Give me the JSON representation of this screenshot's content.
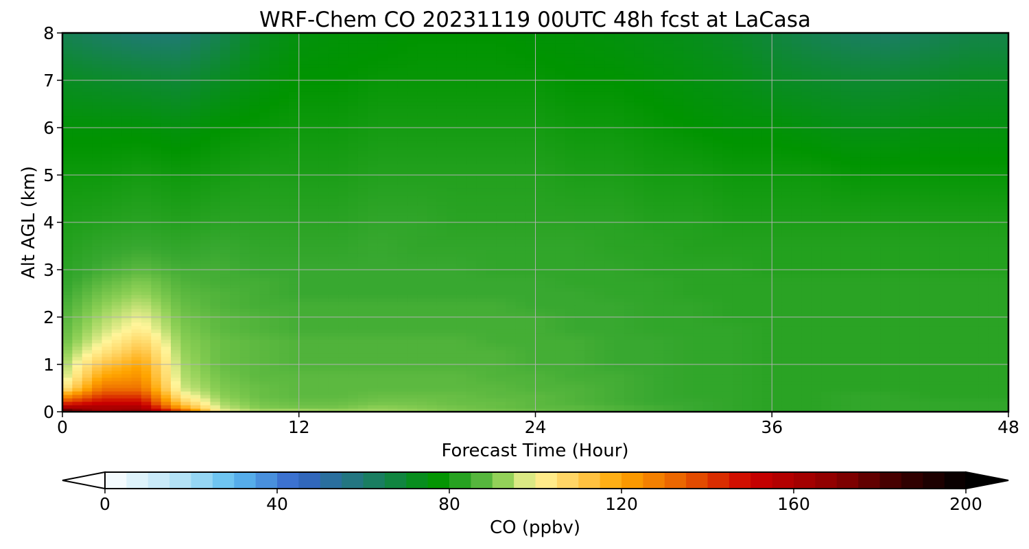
{
  "chart_data": {
    "type": "heatmap",
    "title": "WRF-Chem CO  20231119 00UTC 48h fcst at LaCasa",
    "xlabel": "Forecast Time (Hour)",
    "ylabel": "Alt AGL (km)",
    "x_ticks": [
      "0",
      "12",
      "24",
      "36",
      "48"
    ],
    "y_ticks": [
      "0",
      "1",
      "2",
      "3",
      "4",
      "5",
      "6",
      "7",
      "8"
    ],
    "xlim": [
      0,
      48
    ],
    "ylim": [
      0,
      8
    ],
    "grid": true,
    "colorbar": {
      "label": "CO  (ppbv)",
      "ticks": [
        "0",
        "40",
        "80",
        "120",
        "160",
        "200"
      ],
      "range": [
        0,
        200
      ],
      "extend": "both",
      "stops": [
        {
          "value": 0,
          "color": "#ffffff"
        },
        {
          "value": 20,
          "color": "#a8def5"
        },
        {
          "value": 30,
          "color": "#5cbcf0"
        },
        {
          "value": 45,
          "color": "#3563c9"
        },
        {
          "value": 60,
          "color": "#1f7a72"
        },
        {
          "value": 77,
          "color": "#009400"
        },
        {
          "value": 85,
          "color": "#38a830"
        },
        {
          "value": 92,
          "color": "#8ccf55"
        },
        {
          "value": 100,
          "color": "#fff59a"
        },
        {
          "value": 110,
          "color": "#ffcc55"
        },
        {
          "value": 120,
          "color": "#ffa500"
        },
        {
          "value": 135,
          "color": "#e85a00"
        },
        {
          "value": 150,
          "color": "#cc0000"
        },
        {
          "value": 170,
          "color": "#8a0000"
        },
        {
          "value": 185,
          "color": "#3a0000"
        },
        {
          "value": 200,
          "color": "#000000"
        }
      ]
    },
    "grid_hours": [
      0,
      2,
      4,
      6,
      8,
      10,
      12,
      14,
      16,
      18,
      20,
      22,
      24,
      26,
      28,
      30,
      32,
      34,
      36,
      38,
      40,
      42,
      44,
      46,
      48
    ],
    "grid_altitudes_km": [
      0,
      0.05,
      0.1,
      0.2,
      0.35,
      0.5,
      0.75,
      1,
      1.25,
      1.5,
      1.75,
      2,
      2.25,
      2.5,
      2.75,
      3,
      3.5,
      4,
      5,
      6,
      7,
      8
    ],
    "values_ppbv": [
      [
        185,
        165,
        168,
        140,
        100,
        95,
        95,
        94,
        94,
        93,
        92,
        90,
        89,
        88,
        87,
        86,
        85,
        84,
        83,
        83,
        84,
        84,
        84,
        84,
        84
      ],
      [
        175,
        160,
        165,
        130,
        98,
        93,
        93,
        92,
        93,
        92,
        90,
        90,
        89,
        88,
        87,
        86,
        85,
        84,
        83,
        83,
        84,
        84,
        84,
        84,
        84
      ],
      [
        160,
        160,
        160,
        120,
        96,
        91,
        90,
        90,
        92,
        91,
        90,
        89,
        88,
        88,
        87,
        86,
        85,
        84,
        83,
        83,
        84,
        84,
        84,
        84,
        84
      ],
      [
        140,
        150,
        150,
        110,
        94,
        90,
        89,
        89,
        90,
        90,
        89,
        89,
        88,
        87,
        86,
        85,
        85,
        84,
        83,
        83,
        84,
        84,
        84,
        84,
        84
      ],
      [
        120,
        140,
        140,
        102,
        92,
        89,
        88,
        88,
        89,
        89,
        89,
        88,
        88,
        87,
        86,
        85,
        84,
        84,
        83,
        83,
        84,
        84,
        83,
        83,
        83
      ],
      [
        102,
        130,
        130,
        97,
        91,
        89,
        88,
        88,
        88,
        88,
        88,
        88,
        87,
        87,
        86,
        85,
        84,
        84,
        83,
        83,
        83,
        83,
        83,
        83,
        83
      ],
      [
        95,
        120,
        124,
        95,
        90,
        88,
        88,
        88,
        88,
        88,
        88,
        87,
        87,
        86,
        86,
        85,
        84,
        84,
        83,
        83,
        83,
        83,
        83,
        83,
        83
      ],
      [
        93,
        112,
        120,
        94,
        89,
        88,
        87,
        87,
        87,
        87,
        87,
        87,
        86,
        86,
        85,
        85,
        84,
        84,
        83,
        83,
        83,
        83,
        83,
        83,
        83
      ],
      [
        91,
        104,
        114,
        93,
        89,
        88,
        87,
        87,
        87,
        87,
        87,
        87,
        86,
        86,
        85,
        85,
        84,
        84,
        83,
        83,
        83,
        83,
        83,
        83,
        83
      ],
      [
        89,
        99,
        108,
        92,
        89,
        88,
        87,
        87,
        87,
        87,
        87,
        86,
        86,
        86,
        85,
        85,
        84,
        84,
        83,
        83,
        83,
        83,
        83,
        83,
        83
      ],
      [
        88,
        96,
        102,
        91,
        88,
        87,
        86,
        86,
        86,
        86,
        86,
        86,
        86,
        85,
        85,
        84,
        84,
        84,
        83,
        83,
        83,
        83,
        83,
        83,
        83
      ],
      [
        87,
        94,
        99,
        90,
        88,
        87,
        86,
        86,
        86,
        86,
        86,
        86,
        86,
        85,
        85,
        84,
        84,
        83,
        83,
        83,
        83,
        83,
        83,
        83,
        83
      ],
      [
        86,
        92,
        96,
        89,
        87,
        86,
        86,
        86,
        86,
        86,
        86,
        86,
        85,
        85,
        85,
        84,
        84,
        83,
        83,
        83,
        83,
        83,
        83,
        83,
        83
      ],
      [
        85,
        90,
        93,
        88,
        87,
        86,
        85,
        85,
        85,
        85,
        85,
        85,
        85,
        85,
        84,
        84,
        83,
        83,
        83,
        83,
        83,
        83,
        83,
        83,
        83
      ],
      [
        84,
        88,
        91,
        87,
        86,
        86,
        85,
        85,
        85,
        85,
        85,
        85,
        85,
        84,
        84,
        84,
        83,
        83,
        83,
        83,
        83,
        83,
        83,
        83,
        83
      ],
      [
        83,
        86,
        88,
        86,
        86,
        85,
        85,
        85,
        85,
        85,
        85,
        84,
        84,
        84,
        84,
        83,
        83,
        83,
        82,
        82,
        82,
        82,
        82,
        82,
        82
      ],
      [
        82,
        84,
        85,
        84,
        85,
        84,
        84,
        84,
        85,
        84,
        84,
        84,
        84,
        84,
        83,
        83,
        82,
        82,
        82,
        82,
        82,
        82,
        82,
        82,
        82
      ],
      [
        81,
        82,
        83,
        82,
        83,
        83,
        83,
        83,
        84,
        84,
        83,
        83,
        83,
        83,
        83,
        82,
        82,
        81,
        81,
        81,
        81,
        81,
        81,
        81,
        81
      ],
      [
        79,
        79,
        80,
        79,
        80,
        81,
        81,
        81,
        82,
        82,
        82,
        82,
        82,
        81,
        81,
        80,
        80,
        79,
        79,
        79,
        78,
        78,
        78,
        78,
        78
      ],
      [
        76,
        76,
        76,
        75,
        77,
        78,
        79,
        79,
        80,
        80,
        80,
        80,
        80,
        79,
        79,
        78,
        77,
        76,
        76,
        75,
        74,
        74,
        75,
        75,
        75
      ],
      [
        72,
        71,
        70,
        69,
        72,
        75,
        77,
        77,
        78,
        78,
        78,
        78,
        78,
        77,
        77,
        76,
        75,
        74,
        72,
        71,
        70,
        70,
        71,
        72,
        72
      ],
      [
        65,
        62,
        60,
        60,
        65,
        72,
        75,
        76,
        76,
        77,
        77,
        77,
        76,
        76,
        75,
        74,
        73,
        71,
        68,
        65,
        63,
        62,
        64,
        66,
        66
      ]
    ]
  }
}
